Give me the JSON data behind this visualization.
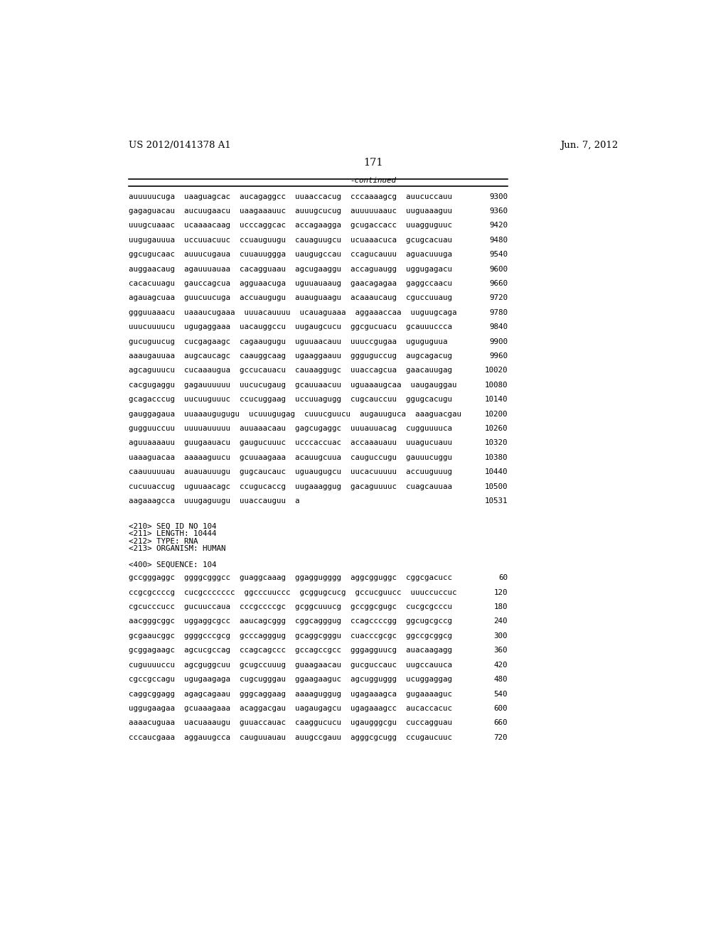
{
  "header_left": "US 2012/0141378 A1",
  "header_right": "Jun. 7, 2012",
  "page_number": "171",
  "continued_label": "-continued",
  "background_color": "#ffffff",
  "text_color": "#000000",
  "font_size_header": 9.5,
  "font_size_body": 7.8,
  "font_size_page": 10.5,
  "sequence_lines_top": [
    [
      "auuuuucuga  uaaguagcac  aucagaggcc  uuaaccacug  cccaaaagcg  auucuccauu",
      "9300"
    ],
    [
      "gagaguacau  aucuugaacu  uaagaaauuc  auuugcucug  auuuuuaauc  uuguaaaguu",
      "9360"
    ],
    [
      "uuugcuaaac  ucaaaacaag  ucccaggcac  accagaagga  gcugaccacc  uuagguguuc",
      "9420"
    ],
    [
      "uugugauuua  uccuuacuuc  ccuauguugu  cauaguugcu  ucuaaacuca  gcugcacuau",
      "9480"
    ],
    [
      "ggcugucaac  auuucugaua  cuuauuggga  uaugugccau  ccagucauuu  aguacuuuga",
      "9540"
    ],
    [
      "auggaacaug  agauuuauaa  cacagguaau  agcugaaggu  accaguaugg  uggugagacu",
      "9600"
    ],
    [
      "cacacuuagu  gauccagcua  agguaacuga  uguuauaaug  gaacagagaa  gaggccaacu",
      "9660"
    ],
    [
      "agauagcuaa  guucuucuga  accuaugugu  auauguaagu  acaaaucaug  cguccuuaug",
      "9720"
    ],
    [
      "ggguuaaacu  uaaaucugaaa  uuuacauuuu  ucauaguaaa  aggaaaccaa  uuguugcaga",
      "9780"
    ],
    [
      "uuucuuuucu  ugugaggaaa  uacauggccu  uugaugcucu  ggcgucuacu  gcauuuccca",
      "9840"
    ],
    [
      "gucuguucug  cucgagaagc  cagaaugugu  uguuaacauu  uuuccgugaa  uguguguua",
      "9900"
    ],
    [
      "aaaugauuaa  augcaucagc  caauggcaag  ugaaggaauu  ggguguccug  augcagacug",
      "9960"
    ],
    [
      "agcaguuucu  cucaaaugua  gccucauacu  cauaaggugc  uuaccagcua  gaacauugag",
      "10020"
    ],
    [
      "cacgugaggu  gagauuuuuu  uucucugaug  gcauuaacuu  uguaaaugcaa  uaugauggau",
      "10080"
    ],
    [
      "gcagacccug  uucuuguuuc  ccucuggaag  uccuuagugg  cugcauccuu  ggugcacugu",
      "10140"
    ],
    [
      "gauggagaua  uuaaaugugugu  ucuuugugag  cuuucguucu  augauuguca  aaaguacgau",
      "10200"
    ],
    [
      "gugguuccuu  uuuuauuuuu  auuaaacaau  gagcugaggc  uuuauuacag  cugguuuuca",
      "10260"
    ],
    [
      "aguuaaaauu  guugaauacu  gaugucuuuc  ucccaccuac  accaaauauu  uuagucuauu",
      "10320"
    ],
    [
      "uaaaguacaa  aaaaaguucu  gcuuaagaaa  acauugcuua  cauguccugu  gauuucuggu",
      "10380"
    ],
    [
      "caauuuuuau  auauauuugu  gugcaucauc  uguaugugcu  uucacuuuuu  accuuguuug",
      "10440"
    ],
    [
      "cucuuaccug  uguuaacagc  ccugucaccg  uugaaaggug  gacaguuuuc  cuagcauuaa",
      "10500"
    ],
    [
      "aagaaagcca  uuugaguugu  uuaccauguu  a",
      "10531"
    ]
  ],
  "metadata_lines": [
    "<210> SEQ ID NO 104",
    "<211> LENGTH: 10444",
    "<212> TYPE: RNA",
    "<213> ORGANISM: HUMAN"
  ],
  "sequence_label": "<400> SEQUENCE: 104",
  "sequence_lines_bottom": [
    [
      "gccgggaggc  ggggcgggcc  guaggcaaag  ggaggugggg  aggcgguggc  cggcgacucc",
      "60"
    ],
    [
      "ccgcgccccg  cucgccccccc  ggcccuuccc  gcggugcucg  gccucguucc  uuuccuccuc",
      "120"
    ],
    [
      "cgcucccucc  gucuuccaua  cccgccccgc  gcggcuuucg  gccggcgugc  cucgcgcccu",
      "180"
    ],
    [
      "aacgggcggc  uggaggcgcc  aaucagcggg  cggcagggug  ccagccccgg  ggcugcgccg",
      "240"
    ],
    [
      "gcgaaucggc  ggggcccgcg  gcccagggug  gcaggcgggu  cuacccgcgc  ggccgcggcg",
      "300"
    ],
    [
      "gcggagaagc  agcucgccag  ccagcagccc  gccagccgcc  gggagguucg  auacaagagg",
      "360"
    ],
    [
      "cuguuuuccu  agcguggcuu  gcugccuuug  guaagaacau  gucguccauc  uugccauuca",
      "420"
    ],
    [
      "cgccgccagu  ugugaagaga  cugcugggau  ggaagaaguc  agcugguggg  ucuggaggag",
      "480"
    ],
    [
      "caggcggagg  agagcagaau  gggcaggaag  aaaaguggug  ugagaaagca  gugaaaaguc",
      "540"
    ],
    [
      "uggugaagaa  gcuaaagaaa  acaggacgau  uagaugagcu  ugagaaagcc  aucaccacuc",
      "600"
    ],
    [
      "aaaacuguaa  uacuaaaugu  guuaccauac  caaggucucu  ugaugggcgu  cuccagguau",
      "660"
    ],
    [
      "cccaucgaaa  aggauugcca  cauguuauau  auugccgauu  agggcgcugg  ccugaucuuc",
      "720"
    ]
  ]
}
